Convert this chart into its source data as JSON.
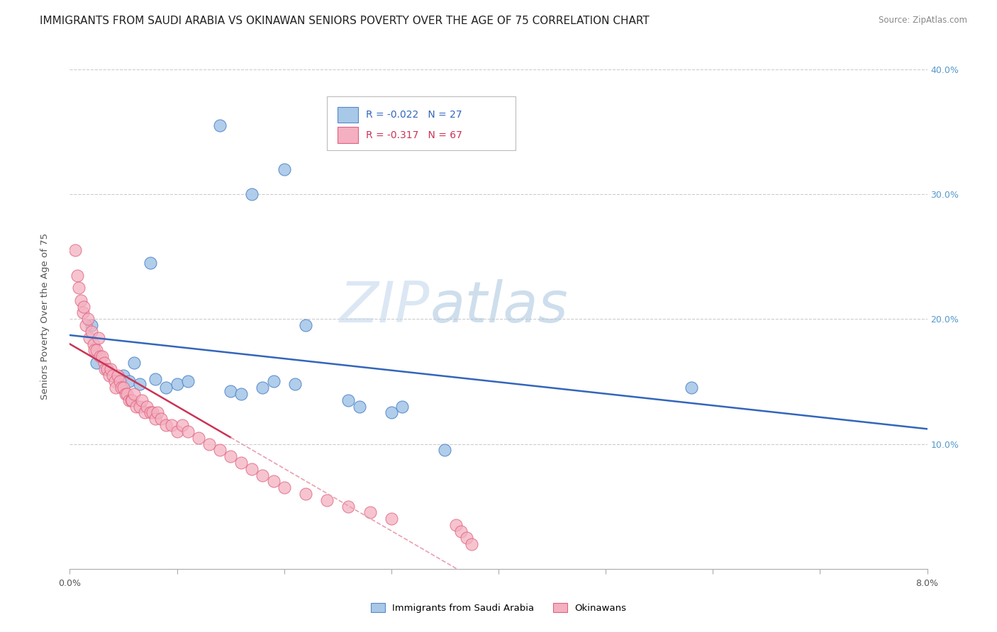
{
  "title": "IMMIGRANTS FROM SAUDI ARABIA VS OKINAWAN SENIORS POVERTY OVER THE AGE OF 75 CORRELATION CHART",
  "source": "Source: ZipAtlas.com",
  "ylabel": "Seniors Poverty Over the Age of 75",
  "legend_blue_r": "R = -0.022",
  "legend_blue_n": "N = 27",
  "legend_pink_r": "R = -0.317",
  "legend_pink_n": "N = 67",
  "legend_label_blue": "Immigrants from Saudi Arabia",
  "legend_label_pink": "Okinawans",
  "watermark_zip": "ZIP",
  "watermark_atlas": "atlas",
  "xlim": [
    0.0,
    8.0
  ],
  "ylim": [
    0.0,
    42.0
  ],
  "yticks": [
    10.0,
    20.0,
    30.0,
    40.0
  ],
  "xtick_count": 8,
  "blue_scatter_x": [
    1.4,
    2.0,
    1.7,
    0.75,
    0.6,
    0.5,
    0.55,
    0.65,
    0.8,
    0.9,
    1.0,
    1.1,
    1.5,
    1.6,
    1.8,
    1.9,
    2.1,
    2.2,
    2.6,
    2.7,
    5.8,
    0.35,
    0.25,
    0.2,
    3.0,
    3.1,
    3.5
  ],
  "blue_scatter_y": [
    35.5,
    32.0,
    30.0,
    24.5,
    16.5,
    15.5,
    15.0,
    14.8,
    15.2,
    14.5,
    14.8,
    15.0,
    14.2,
    14.0,
    14.5,
    15.0,
    14.8,
    19.5,
    13.5,
    13.0,
    14.5,
    16.0,
    16.5,
    19.5,
    12.5,
    13.0,
    9.5
  ],
  "pink_scatter_x": [
    0.05,
    0.07,
    0.08,
    0.1,
    0.12,
    0.13,
    0.15,
    0.17,
    0.18,
    0.2,
    0.22,
    0.23,
    0.25,
    0.27,
    0.28,
    0.3,
    0.32,
    0.33,
    0.35,
    0.37,
    0.38,
    0.4,
    0.42,
    0.43,
    0.45,
    0.47,
    0.48,
    0.5,
    0.52,
    0.53,
    0.55,
    0.57,
    0.58,
    0.6,
    0.62,
    0.65,
    0.67,
    0.7,
    0.72,
    0.75,
    0.77,
    0.8,
    0.82,
    0.85,
    0.9,
    0.95,
    1.0,
    1.05,
    1.1,
    1.2,
    1.3,
    1.4,
    1.5,
    1.6,
    1.7,
    1.8,
    1.9,
    2.0,
    2.2,
    2.4,
    2.6,
    2.8,
    3.0,
    3.6,
    3.65,
    3.7,
    3.75
  ],
  "pink_scatter_y": [
    25.5,
    23.5,
    22.5,
    21.5,
    20.5,
    21.0,
    19.5,
    20.0,
    18.5,
    19.0,
    18.0,
    17.5,
    17.5,
    18.5,
    17.0,
    17.0,
    16.5,
    16.0,
    16.0,
    15.5,
    16.0,
    15.5,
    15.0,
    14.5,
    15.5,
    15.0,
    14.5,
    14.5,
    14.0,
    14.0,
    13.5,
    13.5,
    13.5,
    14.0,
    13.0,
    13.0,
    13.5,
    12.5,
    13.0,
    12.5,
    12.5,
    12.0,
    12.5,
    12.0,
    11.5,
    11.5,
    11.0,
    11.5,
    11.0,
    10.5,
    10.0,
    9.5,
    9.0,
    8.5,
    8.0,
    7.5,
    7.0,
    6.5,
    6.0,
    5.5,
    5.0,
    4.5,
    4.0,
    3.5,
    3.0,
    2.5,
    2.0
  ],
  "blue_color": "#a8c8e8",
  "blue_edge_color": "#5588cc",
  "pink_color": "#f4b0c0",
  "pink_edge_color": "#e06080",
  "blue_line_color": "#3366bb",
  "pink_line_color": "#cc3355",
  "pink_dash_color": "#e8a0b0",
  "grid_color": "#cccccc",
  "background_color": "#ffffff",
  "title_fontsize": 11,
  "axis_label_fontsize": 9.5,
  "tick_fontsize": 9,
  "right_tick_color": "#5599cc"
}
